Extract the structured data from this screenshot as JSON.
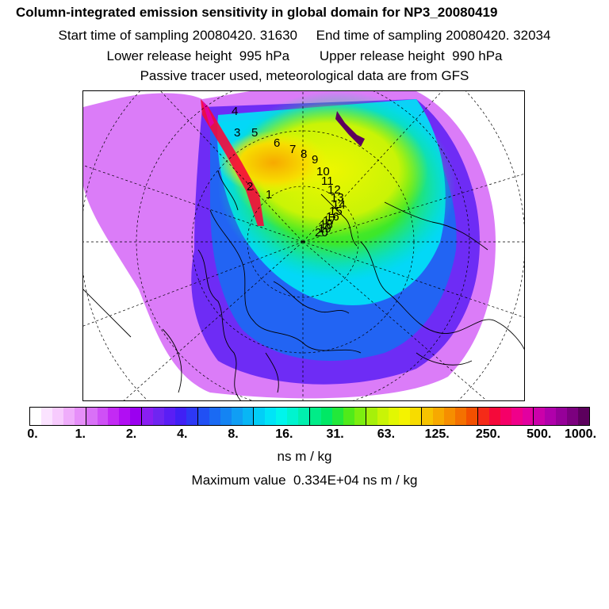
{
  "title": {
    "line1": "Column-integrated emission sensitivity in global domain for NP3_20080419",
    "line2": "Start time of sampling 20080420. 31630     End time of sampling 20080420. 32034",
    "line3": "Lower release height  995 hPa        Upper release height  990 hPa",
    "line4": "Passive tracer used, meteorological data are from GFS"
  },
  "map": {
    "trajectory_labels": [
      "1",
      "2",
      "3",
      "4",
      "5",
      "6",
      "7",
      "8",
      "9",
      "10",
      "11",
      "12",
      "13",
      "14",
      "15",
      "16",
      "17",
      "18",
      "19",
      "20"
    ]
  },
  "colorbar": {
    "labels": [
      "0.",
      "1.",
      "2.",
      "4.",
      "8.",
      "16.",
      "31.",
      "63.",
      "125.",
      "250.",
      "500.",
      "1000."
    ],
    "colors": [
      "#ffffff",
      "#fbe3ff",
      "#f7cbfd",
      "#efadfb",
      "#e68ff9",
      "#d971f7",
      "#cf50f6",
      "#c32af4",
      "#b10ef3",
      "#9b00f0",
      "#8a1ef2",
      "#6f25f1",
      "#5a1ef5",
      "#4020f5",
      "#2d38f5",
      "#2150f4",
      "#1a6af3",
      "#1484f3",
      "#109ef4",
      "#08b6f5",
      "#02cef7",
      "#00e4f7",
      "#00f5ec",
      "#00f4cf",
      "#00f0ae",
      "#00ec88",
      "#00e865",
      "#22e83a",
      "#50ea1a",
      "#7cee10",
      "#a6f00a",
      "#c9f406",
      "#e2f702",
      "#f4f300",
      "#f7dc00",
      "#f7c300",
      "#f7a900",
      "#f68e00",
      "#f47100",
      "#f35000",
      "#f52b18",
      "#f5093a",
      "#f50068",
      "#f0008a",
      "#e200a0",
      "#cb00aa",
      "#b000ab",
      "#960099",
      "#7c007f",
      "#5c005d"
    ],
    "units": "ns m / kg",
    "max_value": "Maximum value  0.334E+04 ns m / kg"
  }
}
